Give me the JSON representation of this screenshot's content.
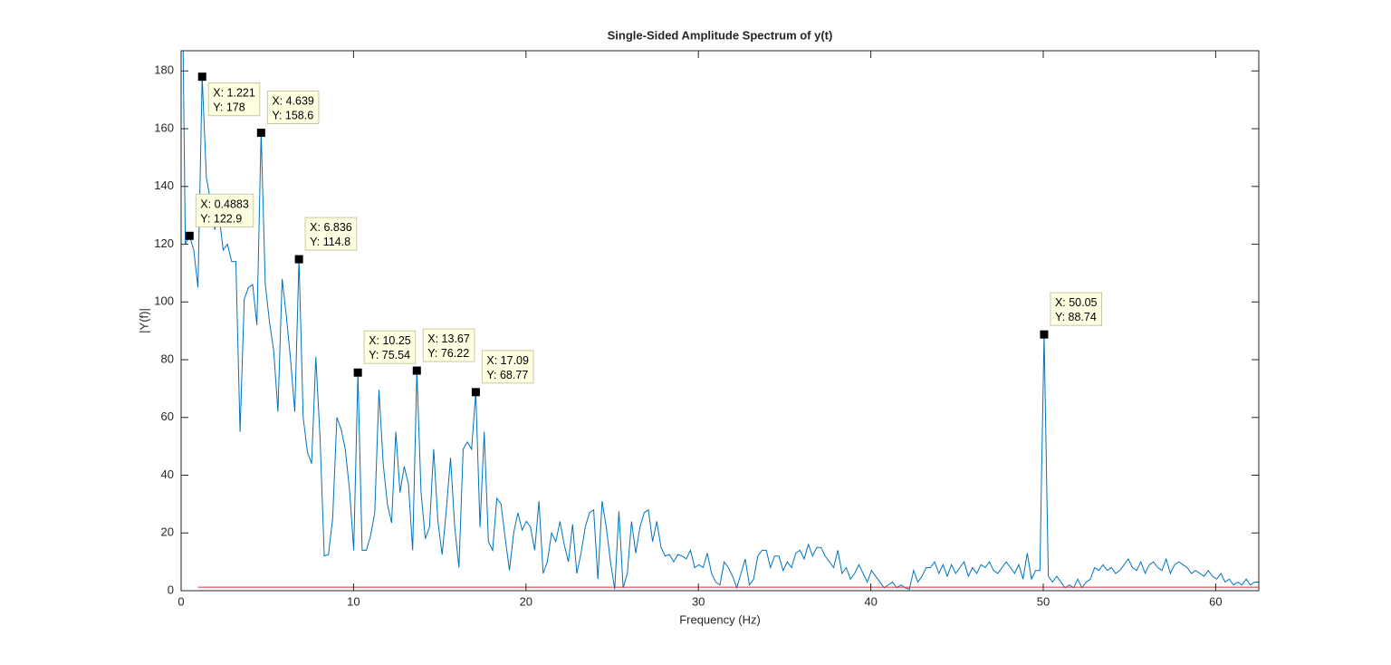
{
  "chart_data": {
    "type": "line",
    "title": "Single-Sided Amplitude Spectrum of y(t)",
    "x_label": "Frequency (Hz)",
    "y_label": "|Y(f)|",
    "xlim": [
      0,
      62.5
    ],
    "ylim": [
      0,
      187
    ],
    "xticks": [
      0,
      10,
      20,
      30,
      40,
      50,
      60
    ],
    "yticks": [
      0,
      20,
      40,
      60,
      80,
      100,
      120,
      140,
      160,
      180
    ],
    "grid": false,
    "series": [
      {
        "color": "#0072bd",
        "x": [
          0,
          0.244,
          0.488,
          0.732,
          0.977,
          1.221,
          1.465,
          1.709,
          1.953,
          2.197,
          2.441,
          2.686,
          2.93,
          3.174,
          3.418,
          3.662,
          3.906,
          4.15,
          4.395,
          4.639,
          4.883,
          5.127,
          5.371,
          5.615,
          5.859,
          6.104,
          6.348,
          6.592,
          6.836,
          7.08,
          7.324,
          7.568,
          7.813,
          8.057,
          8.301,
          8.545,
          8.789,
          9.033,
          9.277,
          9.521,
          9.766,
          10.01,
          10.254,
          10.498,
          10.742,
          10.986,
          11.23,
          11.475,
          11.719,
          11.963,
          12.207,
          12.451,
          12.695,
          12.939,
          13.184,
          13.428,
          13.672,
          13.916,
          14.16,
          14.404,
          14.648,
          14.893,
          15.137,
          15.381,
          15.625,
          15.869,
          16.113,
          16.357,
          16.602,
          16.846,
          17.09,
          17.334,
          17.578,
          17.822,
          18.066,
          18.311,
          18.555,
          18.799,
          19.043,
          19.287,
          19.531,
          19.775,
          20.02,
          20.264,
          20.508,
          20.752,
          20.996,
          21.24,
          21.484,
          21.729,
          21.973,
          22.217,
          22.461,
          22.705,
          22.949,
          23.193,
          23.438,
          23.682,
          23.926,
          24.17,
          24.414,
          24.658,
          24.902,
          25.146,
          25.391,
          25.635,
          25.879,
          26.123,
          26.367,
          26.611,
          26.855,
          27.1,
          27.344,
          27.588,
          27.832,
          28.076,
          28.32,
          28.564,
          28.809,
          29.053,
          29.297,
          29.541,
          29.785,
          30.029,
          30.273,
          30.518,
          30.762,
          31.006,
          31.25,
          31.494,
          31.738,
          31.982,
          32.227,
          32.471,
          32.715,
          32.959,
          33.203,
          33.447,
          33.691,
          33.936,
          34.18,
          34.424,
          34.668,
          34.912,
          35.156,
          35.4,
          35.645,
          35.889,
          36.133,
          36.377,
          36.621,
          36.865,
          37.109,
          37.354,
          37.598,
          37.842,
          38.086,
          38.33,
          38.574,
          38.818,
          39.063,
          39.307,
          39.551,
          39.795,
          40.039,
          40.283,
          40.527,
          40.771,
          41.016,
          41.26,
          41.504,
          41.748,
          41.992,
          42.236,
          42.48,
          42.725,
          42.969,
          43.213,
          43.457,
          43.701,
          43.945,
          44.189,
          44.434,
          44.678,
          44.922,
          45.166,
          45.41,
          45.654,
          45.898,
          46.143,
          46.387,
          46.631,
          46.875,
          47.119,
          47.363,
          47.607,
          47.852,
          48.096,
          48.34,
          48.584,
          48.828,
          49.072,
          49.316,
          49.561,
          49.805,
          50.049,
          50.293,
          50.537,
          50.781,
          51.025,
          51.27,
          51.514,
          51.758,
          52.002,
          52.246,
          52.49,
          52.734,
          52.979,
          53.223,
          53.467,
          53.711,
          53.955,
          54.199,
          54.443,
          54.688,
          54.932,
          55.176,
          55.42,
          55.664,
          55.908,
          56.152,
          56.396,
          56.641,
          56.885,
          57.129,
          57.373,
          57.617,
          57.861,
          58.105,
          58.35,
          58.594,
          58.838,
          59.082,
          59.326,
          59.57,
          59.814,
          60.059,
          60.303,
          60.547,
          60.791,
          61.035,
          61.279,
          61.523,
          61.768,
          62.012,
          62.256,
          62.5
        ],
        "values": [
          250,
          120,
          122.9,
          118,
          105,
          178,
          143,
          135,
          125,
          130,
          118,
          120,
          114,
          114,
          55,
          101,
          105,
          106,
          92,
          158.6,
          106,
          93,
          83,
          62,
          108,
          95,
          80,
          62,
          114.8,
          60,
          48,
          44,
          81,
          53,
          12,
          12.5,
          25,
          60,
          56,
          49,
          35,
          14,
          75.54,
          14,
          14,
          19,
          27,
          69.5,
          44,
          30,
          23.5,
          55,
          34,
          43,
          37,
          14,
          76.22,
          34,
          18,
          22,
          49,
          24,
          12.5,
          28,
          46,
          22,
          8,
          49,
          51.5,
          49,
          68.77,
          22,
          55,
          17,
          14,
          32,
          30,
          18,
          7,
          20,
          27,
          21,
          24,
          22,
          14,
          31,
          6,
          10,
          20,
          17,
          24,
          16,
          10,
          23,
          6,
          13,
          22,
          27,
          28,
          4,
          31,
          22,
          10,
          0.5,
          27.5,
          1,
          6,
          24,
          13,
          22,
          27,
          28,
          17,
          24,
          15,
          12,
          12.5,
          10,
          12.5,
          12,
          11,
          14,
          8,
          9,
          8,
          13,
          6,
          3,
          2,
          10,
          8,
          5,
          1,
          6,
          11,
          2,
          4,
          12,
          14,
          14,
          8,
          12,
          12,
          7,
          10,
          8,
          13,
          14,
          11,
          16,
          12,
          15,
          15,
          12,
          10,
          8,
          14,
          6,
          8,
          4,
          6,
          9,
          6,
          3,
          7,
          5,
          3,
          1,
          2,
          3,
          1,
          2,
          1,
          0.5,
          7,
          3,
          5,
          8,
          8,
          10,
          6,
          9,
          5,
          9,
          6,
          8,
          10,
          5,
          8,
          6,
          9,
          8,
          10,
          7,
          6,
          8,
          10,
          8,
          6,
          9,
          4,
          13,
          4,
          7,
          7,
          88.74,
          5,
          3,
          5,
          3,
          1,
          2,
          1,
          4,
          1,
          3,
          4,
          8,
          7,
          9,
          7,
          8,
          6,
          7,
          9,
          11,
          8,
          7,
          10,
          6,
          9,
          10,
          8,
          7,
          11,
          6,
          9,
          10,
          9,
          8,
          6,
          7,
          6,
          5,
          7,
          5,
          4,
          6,
          3,
          4,
          2,
          3,
          2,
          4,
          2,
          3,
          3
        ]
      },
      {
        "color": "#e8292a",
        "x": [
          0.977,
          62.5
        ],
        "values": [
          1.2,
          1.2
        ]
      }
    ],
    "datatips": [
      {
        "x": 1.221,
        "y": 178,
        "label_x": "X: 1.221",
        "label_y": "Y: 178"
      },
      {
        "x": 4.639,
        "y": 158.6,
        "label_x": "X: 4.639",
        "label_y": "Y: 158.6"
      },
      {
        "x": 0.4883,
        "y": 122.9,
        "label_x": "X: 0.4883",
        "label_y": "Y: 122.9"
      },
      {
        "x": 6.836,
        "y": 114.8,
        "label_x": "X: 6.836",
        "label_y": "Y: 114.8"
      },
      {
        "x": 10.25,
        "y": 75.54,
        "label_x": "X: 10.25",
        "label_y": "Y: 75.54"
      },
      {
        "x": 13.67,
        "y": 76.22,
        "label_x": "X: 13.67",
        "label_y": "Y: 76.22"
      },
      {
        "x": 17.09,
        "y": 68.77,
        "label_x": "X: 17.09",
        "label_y": "Y: 68.77"
      },
      {
        "x": 50.05,
        "y": 88.74,
        "label_x": "X: 50.05",
        "label_y": "Y: 88.74"
      }
    ]
  }
}
